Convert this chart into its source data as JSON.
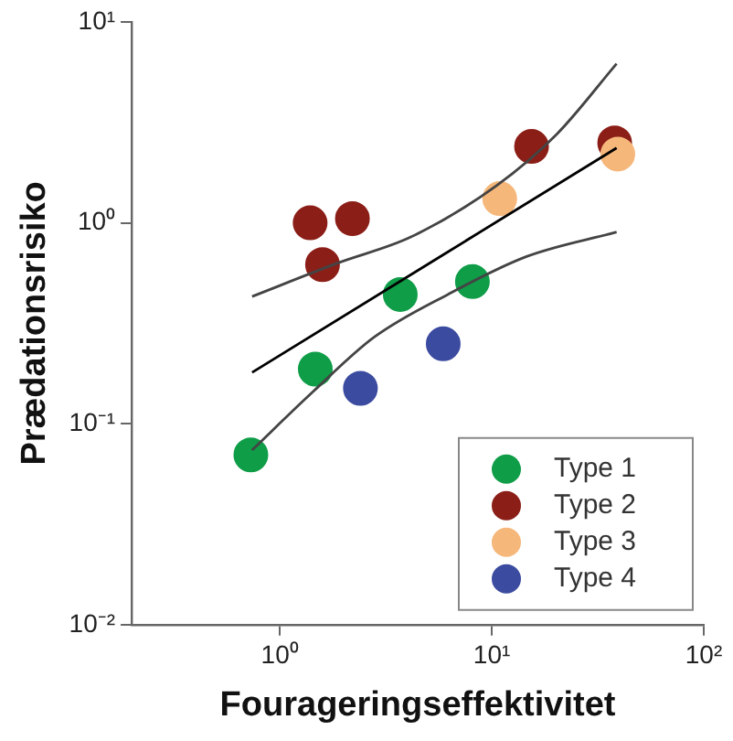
{
  "chart_data": {
    "type": "scatter",
    "xlabel": "Fourageringseffektivitet",
    "ylabel": "Prædationsrisiko",
    "log": "xy",
    "xlim": [
      0.2,
      100
    ],
    "ylim": [
      0.01,
      10
    ],
    "xticks": [
      {
        "value": 1,
        "label": "10⁰"
      },
      {
        "value": 10,
        "label": "10¹"
      },
      {
        "value": 100,
        "label": "10²"
      }
    ],
    "yticks": [
      {
        "value": 0.01,
        "label": "10⁻²"
      },
      {
        "value": 0.1,
        "label": "10⁻¹"
      },
      {
        "value": 1,
        "label": "10⁰"
      },
      {
        "value": 10,
        "label": "10¹"
      }
    ],
    "grid": false,
    "legend": "bottom right",
    "marker": "circle",
    "series": [
      {
        "type": "line",
        "marker": "none",
        "color": "#000000",
        "x": [
          0.74,
          38.8
        ],
        "values": [
          0.18,
          2.36
        ]
      },
      {
        "type": "line",
        "marker": "none",
        "color": "#444444",
        "x": [
          0.74,
          1.87,
          4.15,
          10.5,
          20.3,
          38.8
        ],
        "values": [
          0.43,
          0.63,
          0.85,
          1.53,
          2.77,
          6.2
        ]
      },
      {
        "type": "line",
        "marker": "none",
        "color": "#444444",
        "x": [
          0.74,
          1.44,
          2.79,
          6.2,
          14.6,
          38.8
        ],
        "values": [
          0.074,
          0.145,
          0.27,
          0.44,
          0.68,
          0.9
        ]
      },
      {
        "name": "Type 1",
        "color": "#0f9d48",
        "x": [
          0.73,
          1.47,
          3.7,
          8.1
        ],
        "values": [
          0.07,
          0.187,
          0.44,
          0.51
        ]
      },
      {
        "name": "Type 2",
        "color": "#8b1e17",
        "x": [
          1.39,
          2.2,
          1.59,
          15.4,
          38
        ],
        "values": [
          1.0,
          1.05,
          0.62,
          2.4,
          2.5
        ]
      },
      {
        "name": "Type 3",
        "color": "#f5b77a",
        "x": [
          10.9,
          39.3
        ],
        "values": [
          1.32,
          2.2
        ]
      },
      {
        "name": "Type 4",
        "color": "#3b4ba0",
        "x": [
          2.4,
          5.9
        ],
        "values": [
          0.15,
          0.25
        ]
      }
    ]
  }
}
